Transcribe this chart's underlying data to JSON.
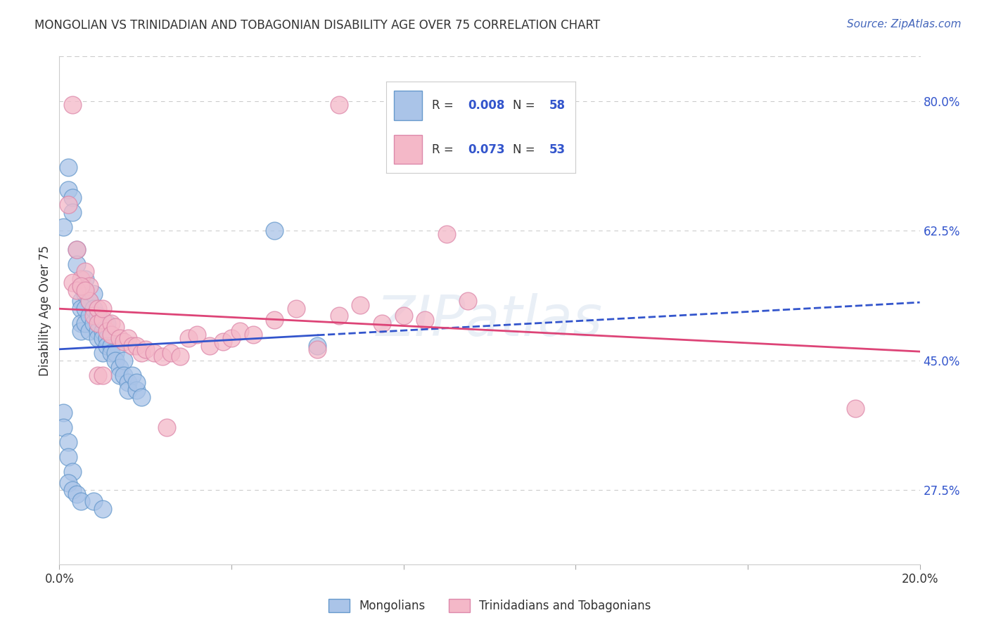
{
  "title": "MONGOLIAN VS TRINIDADIAN AND TOBAGONIAN DISABILITY AGE OVER 75 CORRELATION CHART",
  "source": "Source: ZipAtlas.com",
  "ylabel": "Disability Age Over 75",
  "xlim": [
    0.0,
    0.2
  ],
  "ylim": [
    0.175,
    0.86
  ],
  "yticks_right": [
    0.275,
    0.45,
    0.625,
    0.8
  ],
  "yticklabels_right": [
    "27.5%",
    "45.0%",
    "62.5%",
    "80.0%"
  ],
  "grid_color": "#cccccc",
  "background_color": "#ffffff",
  "mongolian_color": "#aac4e8",
  "trinidadian_color": "#f4b8c8",
  "mongolian_edge": "#6699cc",
  "trinidadian_edge": "#dd88aa",
  "line_blue": "#3355cc",
  "line_pink": "#dd4477",
  "legend_r1": "0.008",
  "legend_n1": "58",
  "legend_r2": "0.073",
  "legend_n2": "53",
  "legend_label1": "Mongolians",
  "legend_label2": "Trinidadians and Tobagonians",
  "accent_color": "#3355cc",
  "text_color": "#333333",
  "source_color": "#4466bb",
  "mongo_x": [
    0.001,
    0.002,
    0.002,
    0.003,
    0.003,
    0.004,
    0.004,
    0.005,
    0.005,
    0.005,
    0.005,
    0.005,
    0.006,
    0.006,
    0.006,
    0.006,
    0.007,
    0.007,
    0.007,
    0.008,
    0.008,
    0.008,
    0.009,
    0.009,
    0.009,
    0.01,
    0.01,
    0.01,
    0.011,
    0.011,
    0.011,
    0.012,
    0.012,
    0.013,
    0.013,
    0.014,
    0.014,
    0.015,
    0.015,
    0.016,
    0.016,
    0.017,
    0.018,
    0.018,
    0.019,
    0.001,
    0.001,
    0.002,
    0.002,
    0.003,
    0.05,
    0.06,
    0.002,
    0.003,
    0.004,
    0.005,
    0.008,
    0.01
  ],
  "mongo_y": [
    0.63,
    0.68,
    0.71,
    0.67,
    0.65,
    0.6,
    0.58,
    0.55,
    0.53,
    0.52,
    0.5,
    0.49,
    0.56,
    0.54,
    0.52,
    0.5,
    0.51,
    0.53,
    0.49,
    0.54,
    0.52,
    0.5,
    0.49,
    0.48,
    0.51,
    0.49,
    0.48,
    0.46,
    0.5,
    0.48,
    0.47,
    0.47,
    0.46,
    0.46,
    0.45,
    0.44,
    0.43,
    0.45,
    0.43,
    0.42,
    0.41,
    0.43,
    0.41,
    0.42,
    0.4,
    0.38,
    0.36,
    0.34,
    0.32,
    0.3,
    0.625,
    0.47,
    0.285,
    0.275,
    0.27,
    0.26,
    0.26,
    0.25
  ],
  "trini_x": [
    0.003,
    0.065,
    0.002,
    0.004,
    0.005,
    0.006,
    0.007,
    0.007,
    0.008,
    0.009,
    0.009,
    0.01,
    0.01,
    0.011,
    0.012,
    0.012,
    0.013,
    0.014,
    0.015,
    0.016,
    0.017,
    0.018,
    0.019,
    0.02,
    0.022,
    0.024,
    0.026,
    0.028,
    0.03,
    0.032,
    0.035,
    0.038,
    0.04,
    0.042,
    0.045,
    0.05,
    0.055,
    0.06,
    0.065,
    0.07,
    0.075,
    0.08,
    0.085,
    0.09,
    0.095,
    0.003,
    0.004,
    0.005,
    0.006,
    0.009,
    0.01,
    0.185,
    0.025
  ],
  "trini_y": [
    0.795,
    0.795,
    0.66,
    0.6,
    0.56,
    0.57,
    0.55,
    0.53,
    0.51,
    0.52,
    0.5,
    0.505,
    0.52,
    0.49,
    0.5,
    0.485,
    0.495,
    0.48,
    0.475,
    0.48,
    0.47,
    0.47,
    0.46,
    0.465,
    0.46,
    0.455,
    0.46,
    0.455,
    0.48,
    0.485,
    0.47,
    0.475,
    0.48,
    0.49,
    0.485,
    0.505,
    0.52,
    0.465,
    0.51,
    0.525,
    0.5,
    0.51,
    0.505,
    0.62,
    0.53,
    0.555,
    0.545,
    0.55,
    0.545,
    0.43,
    0.43,
    0.385,
    0.36
  ]
}
